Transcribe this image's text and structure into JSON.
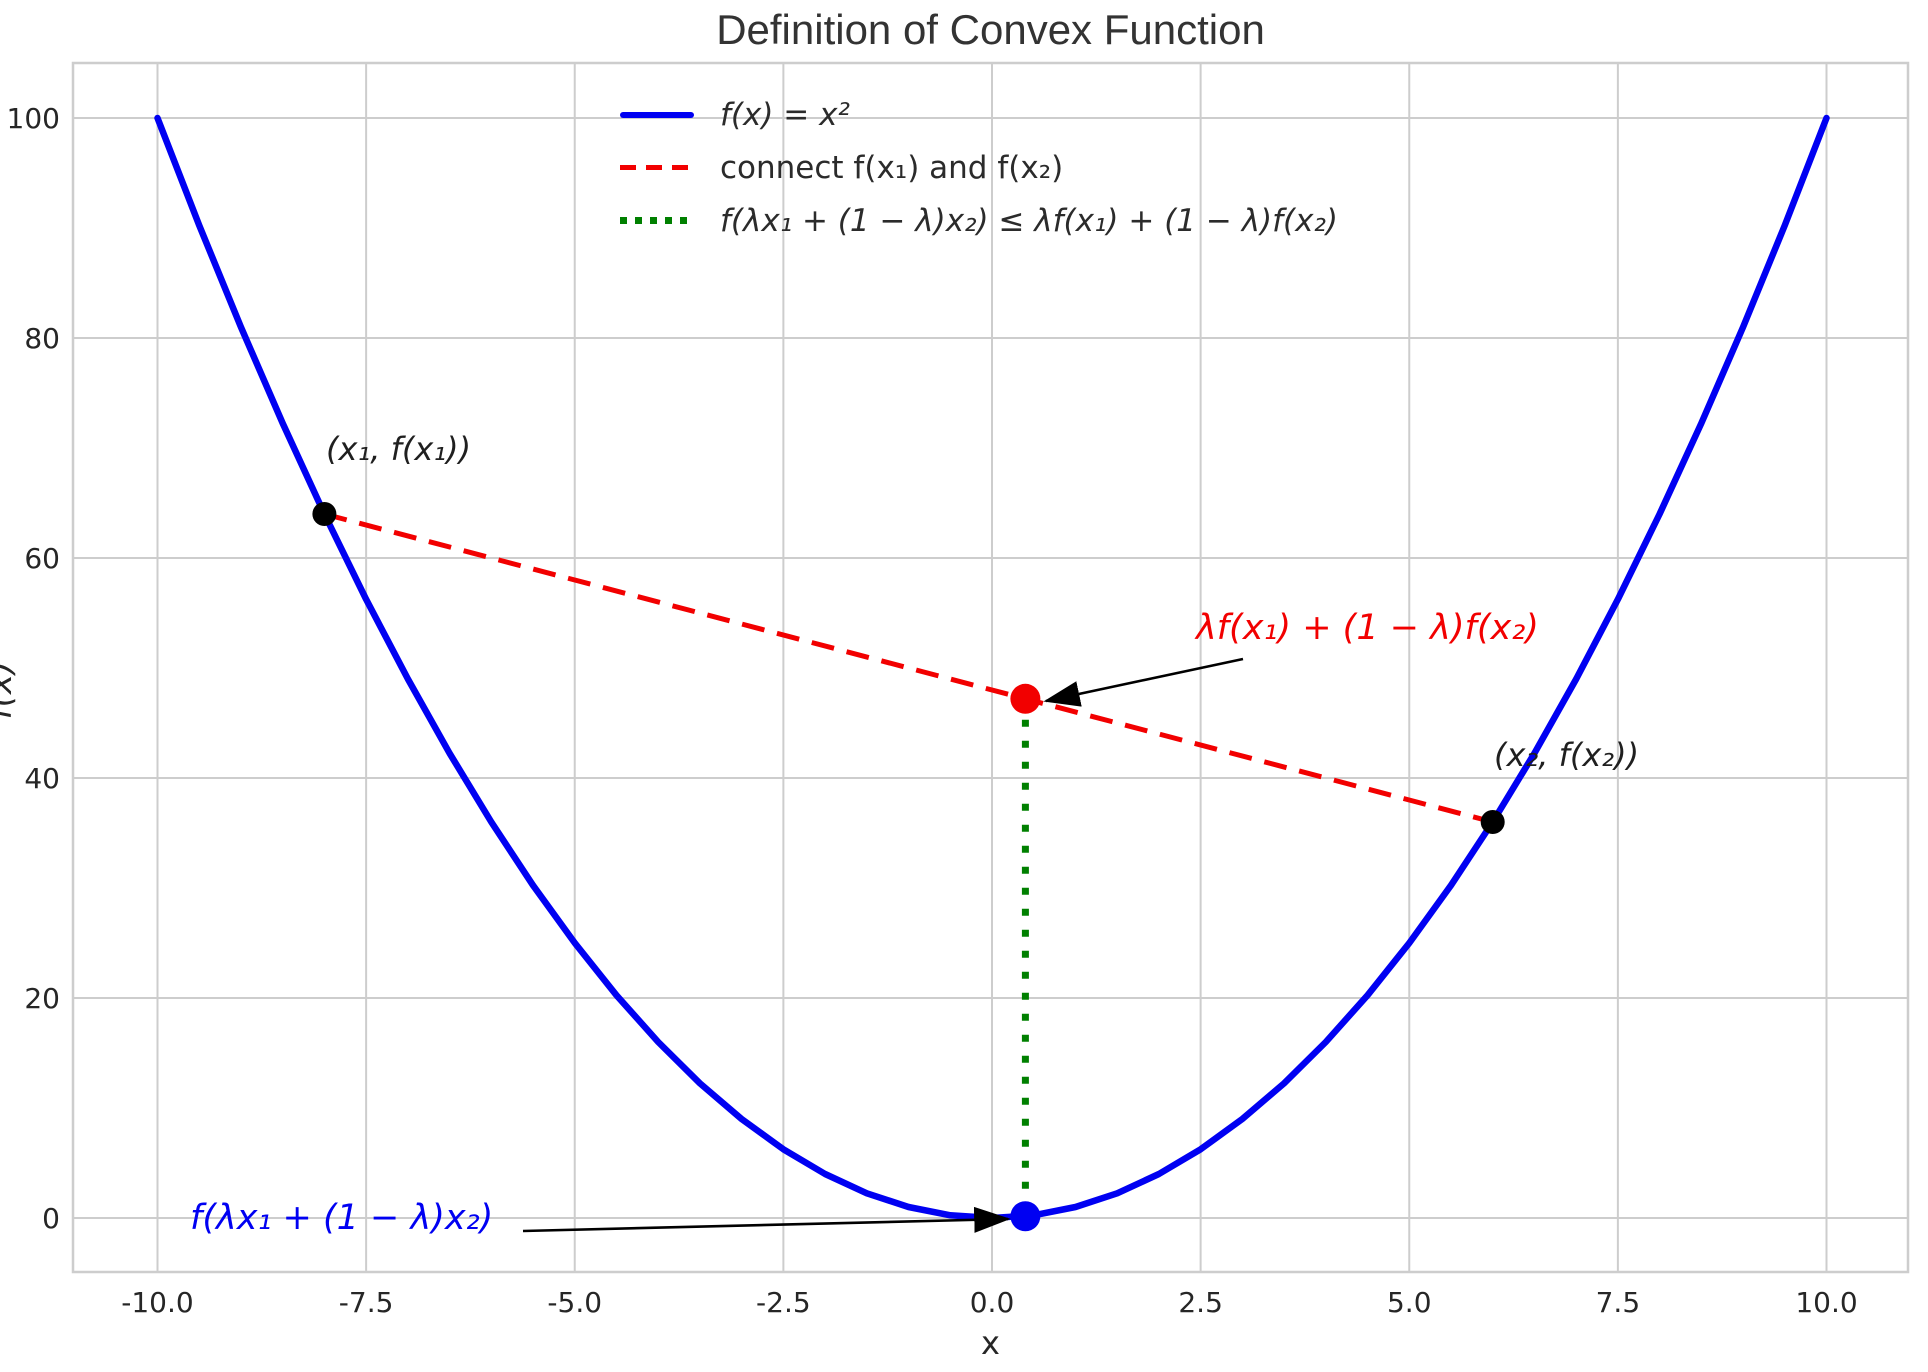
{
  "figure": {
    "title": "Definition of Convex Function",
    "xlabel": "x",
    "ylabel": "f(x)"
  },
  "legend": {
    "items": [
      {
        "label": "f(x) = x²",
        "color": "#0000f2",
        "style": "solid",
        "math": true
      },
      {
        "label": "connect f(x₁) and f(x₂)",
        "color": "#f20000",
        "style": "dashed",
        "math": false
      },
      {
        "label": "f(λx₁ + (1 − λ)x₂) ≤ λf(x₁) + (1 − λ)f(x₂)",
        "color": "#008000",
        "style": "dotted",
        "math": true
      }
    ]
  },
  "annotations": {
    "point1_label": "(x₁, f(x₁))",
    "point2_label": "(x₂, f(x₂))",
    "chord_label": "λf(x₁) + (1 − λ)f(x₂)",
    "curve_label": "f(λx₁ + (1 − λ)x₂)"
  },
  "chart_data": {
    "type": "line",
    "title": "Definition of Convex Function",
    "xlabel": "x",
    "ylabel": "f(x)",
    "xlim": [
      -11,
      11
    ],
    "ylim": [
      -5,
      105
    ],
    "grid": true,
    "legend_position": "upper center-left, inside axes, frameless",
    "x_ticks": [
      -10.0,
      -7.5,
      -5.0,
      -2.5,
      0.0,
      2.5,
      5.0,
      7.5,
      10.0
    ],
    "x_tick_labels": [
      "-10.0",
      "-7.5",
      "-5.0",
      "-2.5",
      "0.0",
      "2.5",
      "5.0",
      "7.5",
      "10.0"
    ],
    "y_ticks": [
      0,
      20,
      40,
      60,
      80,
      100
    ],
    "y_tick_labels": [
      "0",
      "20",
      "40",
      "60",
      "80",
      "100"
    ],
    "series": [
      {
        "name": "f(x) = x²",
        "style": "solid",
        "color": "#0000f2",
        "points": [
          [
            -10,
            100
          ],
          [
            -9.5,
            90.25
          ],
          [
            -9,
            81
          ],
          [
            -8.5,
            72.25
          ],
          [
            -8,
            64
          ],
          [
            -7.5,
            56.25
          ],
          [
            -7,
            49
          ],
          [
            -6.5,
            42.25
          ],
          [
            -6,
            36
          ],
          [
            -5.5,
            30.25
          ],
          [
            -5,
            25
          ],
          [
            -4.5,
            20.25
          ],
          [
            -4,
            16
          ],
          [
            -3.5,
            12.25
          ],
          [
            -3,
            9
          ],
          [
            -2.5,
            6.25
          ],
          [
            -2,
            4
          ],
          [
            -1.5,
            2.25
          ],
          [
            -1,
            1
          ],
          [
            -0.5,
            0.25
          ],
          [
            0,
            0
          ],
          [
            0.5,
            0.25
          ],
          [
            1,
            1
          ],
          [
            1.5,
            2.25
          ],
          [
            2,
            4
          ],
          [
            2.5,
            6.25
          ],
          [
            3,
            9
          ],
          [
            3.5,
            12.25
          ],
          [
            4,
            16
          ],
          [
            4.5,
            20.25
          ],
          [
            5,
            25
          ],
          [
            5.5,
            30.25
          ],
          [
            6,
            36
          ],
          [
            6.5,
            42.25
          ],
          [
            7,
            49
          ],
          [
            7.5,
            56.25
          ],
          [
            8,
            64
          ],
          [
            8.5,
            72.25
          ],
          [
            9,
            81
          ],
          [
            9.5,
            90.25
          ],
          [
            10,
            100
          ]
        ]
      },
      {
        "name": "connect f(x₁) and f(x₂)",
        "style": "dashed",
        "color": "#f20000",
        "points": [
          [
            -8,
            64
          ],
          [
            6,
            36
          ]
        ]
      },
      {
        "name": "f(λx₁ + (1 − λ)x₂) ≤ λf(x₁) + (1 − λ)f(x₂)",
        "style": "dotted",
        "color": "#008000",
        "points": [
          [
            0.4,
            47.2
          ],
          [
            0.4,
            0.16
          ]
        ]
      }
    ],
    "markers": [
      {
        "x": -8,
        "y": 64,
        "color": "#000000",
        "size": 12,
        "label": "(x₁, f(x₁))"
      },
      {
        "x": 6,
        "y": 36,
        "color": "#000000",
        "size": 12,
        "label": "(x₂, f(x₂))"
      },
      {
        "x": 0.4,
        "y": 47.2,
        "color": "#f20000",
        "size": 15,
        "label": "λf(x₁) + (1 − λ)f(x₂)"
      },
      {
        "x": 0.4,
        "y": 0.16,
        "color": "#0000f2",
        "size": 15,
        "label": "f(λx₁ + (1 − λ)x₂)"
      }
    ],
    "key_values": {
      "x1": -8,
      "f_x1": 64,
      "x2": 6,
      "f_x2": 36,
      "lambda": 0.4,
      "chord_point": [
        0.4,
        47.2
      ],
      "curve_point": [
        0.4,
        0.16
      ]
    }
  }
}
